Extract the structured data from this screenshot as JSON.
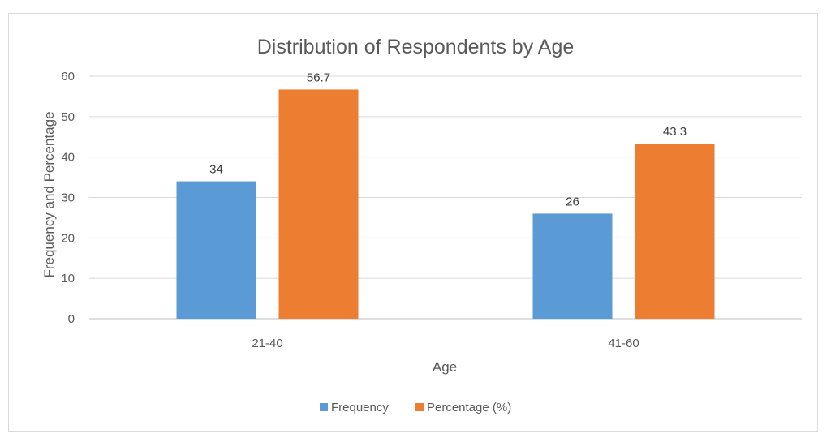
{
  "chart_data": {
    "type": "bar",
    "title": "Distribution of Respondents by Age",
    "xlabel": "Age",
    "ylabel": "Frequency and Percentage",
    "categories": [
      "21-40",
      "41-60"
    ],
    "series": [
      {
        "name": "Frequency",
        "values": [
          34,
          26
        ],
        "color": "#5b9bd5"
      },
      {
        "name": "Percentage (%)",
        "values": [
          56.7,
          43.3
        ],
        "color": "#ed7d31"
      }
    ],
    "data_labels": [
      [
        "34",
        "26"
      ],
      [
        "56.7",
        "43.3"
      ]
    ],
    "ylim": [
      0,
      60
    ],
    "yticks": [
      0,
      10,
      20,
      30,
      40,
      50,
      60
    ],
    "grid": true,
    "legend_position": "bottom"
  }
}
